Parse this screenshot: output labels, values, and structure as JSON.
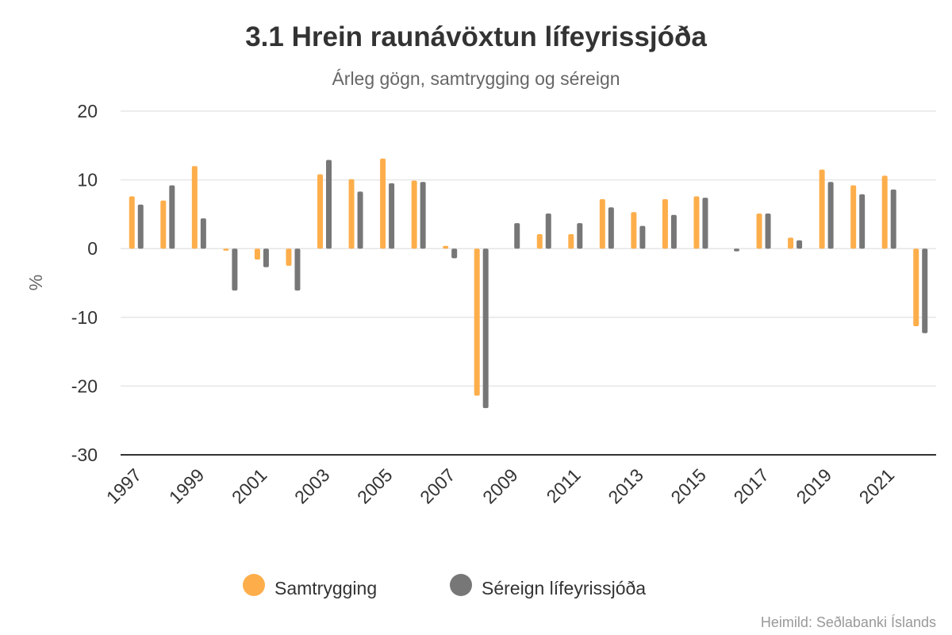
{
  "chart_data": {
    "type": "bar",
    "title": "3.1 Hrein raunávöxtun lífeyrissjóða",
    "subtitle": "Árleg gögn, samtrygging og séreign",
    "ylabel": "%",
    "xlabel": "",
    "ylim": [
      -30,
      20
    ],
    "yticks": [
      "20",
      "10",
      "0",
      "-10",
      "-20",
      "-30"
    ],
    "categories": [
      "1997",
      "1998",
      "1999",
      "2000",
      "2001",
      "2002",
      "2003",
      "2004",
      "2005",
      "2006",
      "2007",
      "2008",
      "2009",
      "2010",
      "2011",
      "2012",
      "2013",
      "2014",
      "2015",
      "2016",
      "2017",
      "2018",
      "2019",
      "2020",
      "2021",
      "2022"
    ],
    "xtick_labels": [
      "1997",
      "1999",
      "2001",
      "2003",
      "2005",
      "2007",
      "2009",
      "2011",
      "2013",
      "2015",
      "2017",
      "2019",
      "2021"
    ],
    "series": [
      {
        "name": "Samtrygging",
        "color": "#fdae4b",
        "values": [
          7.6,
          7.0,
          12.0,
          -0.3,
          -1.6,
          -2.5,
          10.8,
          10.1,
          13.1,
          9.9,
          0.4,
          -21.4,
          null,
          2.1,
          2.1,
          7.2,
          5.3,
          7.2,
          7.6,
          null,
          5.1,
          1.6,
          11.5,
          9.2,
          10.6,
          -11.3
        ]
      },
      {
        "name": "Séreign lífeyrissjóða",
        "color": "#777777",
        "values": [
          6.4,
          9.2,
          4.4,
          -6.1,
          -2.7,
          -6.1,
          12.9,
          8.3,
          9.5,
          9.7,
          -1.4,
          -23.2,
          3.7,
          5.1,
          3.7,
          6.0,
          3.3,
          4.9,
          7.4,
          -0.4,
          5.1,
          1.2,
          9.7,
          7.9,
          8.6,
          -12.3
        ]
      }
    ],
    "grid": true,
    "legend_position": "bottom"
  },
  "footer": {
    "source": "Heimild: Seðlabanki Íslands"
  }
}
